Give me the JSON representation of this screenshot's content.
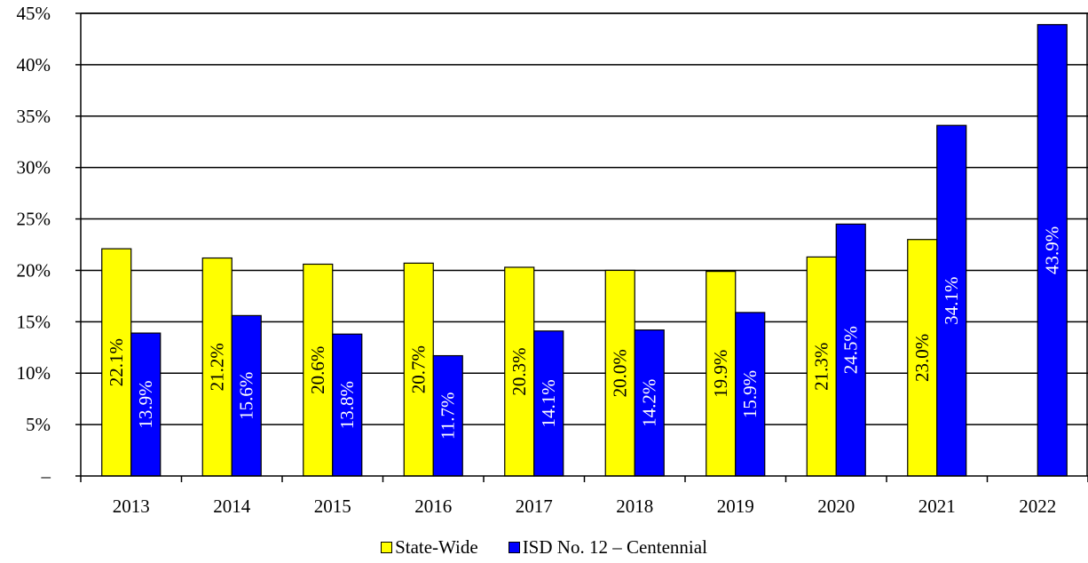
{
  "chart_data": {
    "type": "bar",
    "title": "",
    "xlabel": "",
    "ylabel": "",
    "categories": [
      "2013",
      "2014",
      "2015",
      "2016",
      "2017",
      "2018",
      "2019",
      "2020",
      "2021",
      "2022"
    ],
    "ylim": [
      0,
      45
    ],
    "yticks": [
      0,
      5,
      10,
      15,
      20,
      25,
      30,
      35,
      40,
      45
    ],
    "ytick_labels": [
      "–",
      "5%",
      "10%",
      "15%",
      "20%",
      "25%",
      "30%",
      "35%",
      "40%",
      "45%"
    ],
    "grid": true,
    "legend_position": "bottom-center",
    "series": [
      {
        "name": "State-Wide",
        "color": "#ffff00",
        "label_color": "#000000",
        "values": [
          22.1,
          21.2,
          20.6,
          20.7,
          20.3,
          20.0,
          19.9,
          21.3,
          23.0,
          null
        ],
        "labels": [
          "22.1%",
          "21.2%",
          "20.6%",
          "20.7%",
          "20.3%",
          "20.0%",
          "19.9%",
          "21.3%",
          "23.0%",
          ""
        ]
      },
      {
        "name": "ISD No. 12 – Centennial",
        "color": "#0000ff",
        "label_color": "#ffffff",
        "values": [
          13.9,
          15.6,
          13.8,
          11.7,
          14.1,
          14.2,
          15.9,
          24.5,
          34.1,
          43.9
        ],
        "labels": [
          "13.9%",
          "15.6%",
          "13.8%",
          "11.7%",
          "14.1%",
          "14.2%",
          "15.9%",
          "24.5%",
          "34.1%",
          "43.9%"
        ]
      }
    ]
  }
}
